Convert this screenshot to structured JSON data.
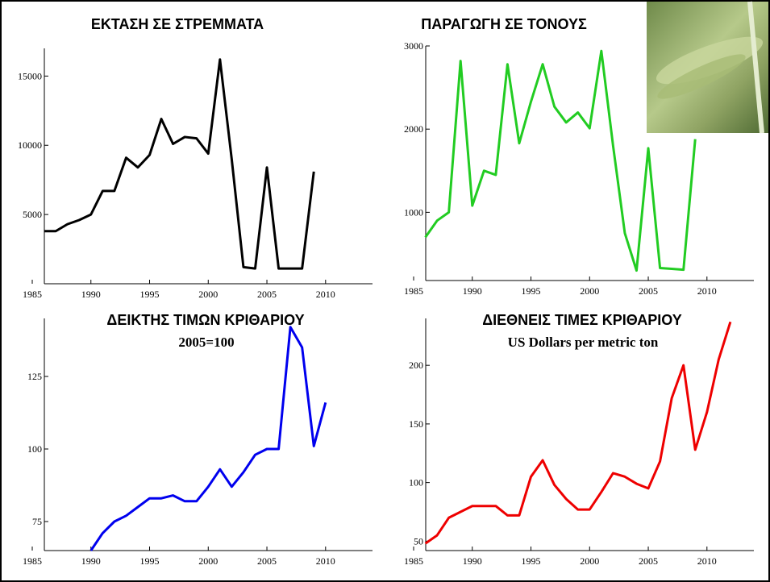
{
  "chart_data": [
    {
      "type": "line",
      "title": "ΕΚΤΑΣΗ ΣΕ ΣΤΡΕΜΜΑΤΑ",
      "color": "#000000",
      "x": [
        1986,
        1987,
        1988,
        1989,
        1990,
        1991,
        1992,
        1993,
        1994,
        1995,
        1996,
        1997,
        1998,
        1999,
        2000,
        2001,
        2002,
        2003,
        2004,
        2005,
        2006,
        2007,
        2008,
        2009
      ],
      "values": [
        3800,
        3800,
        4300,
        4600,
        5000,
        6700,
        6700,
        9100,
        8400,
        9300,
        11900,
        10100,
        10600,
        10500,
        9400,
        16200,
        9000,
        1200,
        1100,
        8400,
        1100,
        1100,
        1100,
        8100
      ],
      "xlim": [
        1985,
        2014
      ],
      "xticks": [
        1985,
        1990,
        1995,
        2000,
        2005,
        2010
      ],
      "ylim": [
        0,
        17000
      ],
      "yticks": [
        5000,
        10000,
        15000
      ]
    },
    {
      "type": "line",
      "title": "ΠΑΡΑΓΩΓΗ ΣΕ ΤΟΝΟΥΣ",
      "color": "#22cc22",
      "x": [
        1986,
        1987,
        1988,
        1989,
        1990,
        1991,
        1992,
        1993,
        1994,
        1995,
        1996,
        1997,
        1998,
        1999,
        2000,
        2001,
        2002,
        2003,
        2004,
        2005,
        2006,
        2007,
        2008,
        2009
      ],
      "values": [
        700,
        900,
        1000,
        2820,
        1080,
        1500,
        1450,
        2780,
        1830,
        2330,
        2780,
        2270,
        2080,
        2200,
        2010,
        2940,
        1800,
        750,
        300,
        1770,
        330,
        320,
        310,
        1880
      ],
      "xlim": [
        1985,
        2014
      ],
      "xticks": [
        1985,
        1990,
        1995,
        2000,
        2005,
        2010
      ],
      "ylim": [
        180,
        3000
      ],
      "yticks": [
        1000,
        2000,
        3000
      ]
    },
    {
      "type": "line",
      "title": "ΔΕΙΚΤΗΣ ΤΙΜΩΝ ΚΡΙΘΑΡΙΟΥ",
      "subtitle": "2005=100",
      "color": "#0000ee",
      "x": [
        1990,
        1991,
        1992,
        1993,
        1994,
        1995,
        1996,
        1997,
        1998,
        1999,
        2000,
        2001,
        2002,
        2003,
        2004,
        2005,
        2006,
        2007,
        2008,
        2009,
        2010
      ],
      "values": [
        65,
        71,
        75,
        77,
        80,
        83,
        83,
        84,
        82,
        82,
        87,
        93,
        87,
        92,
        98,
        100,
        100,
        142,
        135,
        101,
        116
      ],
      "xlim": [
        1985,
        2014
      ],
      "xticks": [
        1985,
        1990,
        1995,
        2000,
        2005,
        2010
      ],
      "ylim": [
        65,
        145
      ],
      "yticks": [
        75,
        100,
        125
      ]
    },
    {
      "type": "line",
      "title": "ΔΙΕΘΝΕΙΣ ΤΙΜΕΣ ΚΡΙΘΑΡΙΟΥ",
      "subtitle": "US Dollars per metric ton",
      "color": "#ee0000",
      "x": [
        1986,
        1987,
        1988,
        1989,
        1990,
        1991,
        1992,
        1993,
        1994,
        1995,
        1996,
        1997,
        1998,
        1999,
        2000,
        2001,
        2002,
        2003,
        2004,
        2005,
        2006,
        2007,
        2008,
        2009,
        2010,
        2011,
        2012
      ],
      "values": [
        48,
        55,
        70,
        75,
        80,
        80,
        80,
        72,
        72,
        105,
        119,
        98,
        86,
        77,
        77,
        92,
        108,
        105,
        99,
        95,
        118,
        172,
        200,
        128,
        160,
        205,
        237
      ],
      "xlim": [
        1985,
        2014
      ],
      "xticks": [
        1985,
        1990,
        1995,
        2000,
        2005,
        2010
      ],
      "ylim": [
        42,
        240
      ],
      "yticks": [
        50,
        100,
        150,
        200
      ]
    }
  ]
}
